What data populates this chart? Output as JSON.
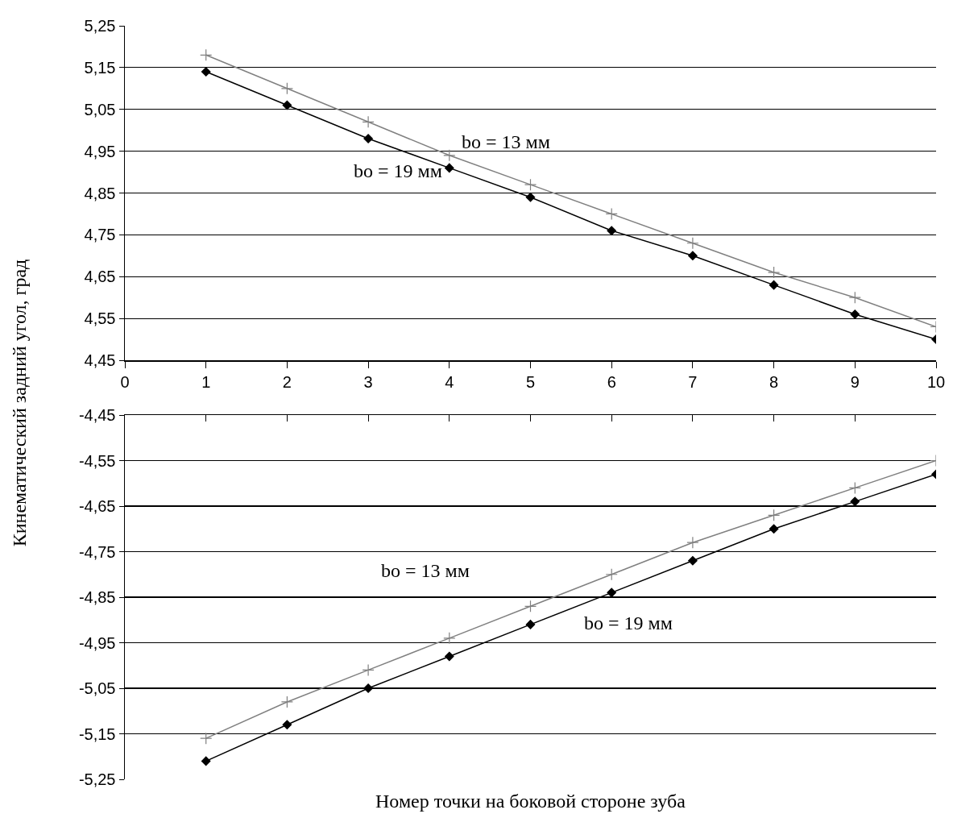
{
  "chart_data": [
    {
      "type": "line",
      "ylabel": "Кинематический задний угол, град",
      "x": [
        1,
        2,
        3,
        4,
        5,
        6,
        7,
        8,
        9,
        10
      ],
      "xlim": [
        0,
        10
      ],
      "xticks": [
        0,
        1,
        2,
        3,
        4,
        5,
        6,
        7,
        8,
        9,
        10
      ],
      "ylim": [
        4.45,
        5.25
      ],
      "yticks": [
        {
          "value": 4.45,
          "label": "4,45"
        },
        {
          "value": 4.55,
          "label": "4,55"
        },
        {
          "value": 4.65,
          "label": "4,65"
        },
        {
          "value": 4.75,
          "label": "4,75"
        },
        {
          "value": 4.85,
          "label": "4,85"
        },
        {
          "value": 4.95,
          "label": "4,95"
        },
        {
          "value": 5.05,
          "label": "5,05"
        },
        {
          "value": 5.15,
          "label": "5,15"
        },
        {
          "value": 5.25,
          "label": "5,25"
        }
      ],
      "grid": "y",
      "series": [
        {
          "color": "#808080",
          "marker": "cross",
          "values": [
            5.18,
            5.1,
            5.02,
            4.94,
            4.87,
            4.8,
            4.73,
            4.66,
            4.6,
            4.53
          ]
        },
        {
          "color": "#000000",
          "marker": "diamond",
          "values": [
            5.14,
            5.06,
            4.98,
            4.91,
            4.84,
            4.76,
            4.7,
            4.63,
            4.56,
            4.5
          ]
        }
      ],
      "annotations": [
        "bo = 13 мм",
        "bo = 19 мм"
      ]
    },
    {
      "type": "line",
      "xlabel": "Номер точки на боковой стороне зуба",
      "x": [
        1,
        2,
        3,
        4,
        5,
        6,
        7,
        8,
        9,
        10
      ],
      "xlim": [
        0,
        10
      ],
      "xticks": [
        0,
        1,
        2,
        3,
        4,
        5,
        6,
        7,
        8,
        9,
        10
      ],
      "ylim": [
        -5.25,
        -4.45
      ],
      "yticks": [
        {
          "value": -5.25,
          "label": "-5,25"
        },
        {
          "value": -5.15,
          "label": "-5,15"
        },
        {
          "value": -5.05,
          "label": "-5,05"
        },
        {
          "value": -4.95,
          "label": "-4,95"
        },
        {
          "value": -4.85,
          "label": "-4,85"
        },
        {
          "value": -4.75,
          "label": "-4,75"
        },
        {
          "value": -4.65,
          "label": "-4,65"
        },
        {
          "value": -4.55,
          "label": "-4,55"
        },
        {
          "value": -4.45,
          "label": "-4,45"
        }
      ],
      "grid": "y",
      "tick_labels": "y",
      "series": [
        {
          "color": "#808080",
          "marker": "cross",
          "values": [
            -5.16,
            -5.08,
            -5.01,
            -4.94,
            -4.87,
            -4.8,
            -4.73,
            -4.67,
            -4.61,
            -4.55
          ]
        },
        {
          "color": "#000000",
          "marker": "diamond",
          "values": [
            -5.21,
            -5.13,
            -5.05,
            -4.98,
            -4.91,
            -4.84,
            -4.77,
            -4.7,
            -4.64,
            -4.58
          ]
        }
      ],
      "annotations": [
        "bo = 13 мм",
        "bo = 19 мм"
      ]
    }
  ]
}
